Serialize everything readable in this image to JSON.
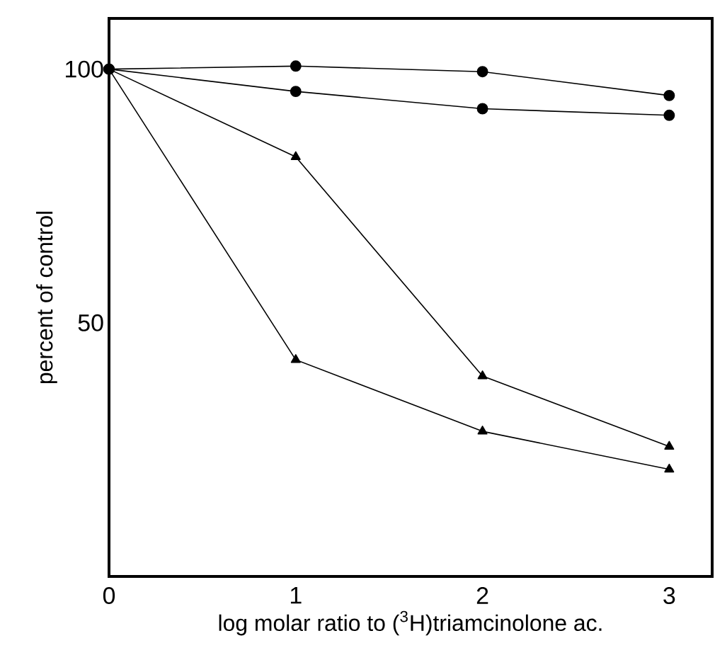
{
  "chart_data": {
    "type": "line",
    "xlabel": "log molar ratio to ($^{3}$H)triamcinolone ac.",
    "ylabel": "percent of control",
    "x": [
      0,
      1,
      2,
      3
    ],
    "xlim": [
      0,
      3.23
    ],
    "ylim": [
      0,
      110
    ],
    "xticks": [
      0,
      1,
      2,
      3
    ],
    "yticks": [
      50,
      100
    ],
    "grid": false,
    "series": [
      {
        "color": "#000000",
        "marker": "circle",
        "values": [
          100,
          100.6,
          99.5,
          94.8
        ]
      },
      {
        "color": "#000000",
        "marker": "circle",
        "values": [
          100,
          95.6,
          92.2,
          90.9
        ]
      },
      {
        "color": "#000000",
        "marker": "triangle",
        "values": [
          100,
          82.7,
          39.5,
          25.6
        ]
      },
      {
        "color": "#000000",
        "marker": "triangle",
        "values": [
          100,
          42.7,
          28.6,
          21.1
        ]
      }
    ]
  }
}
